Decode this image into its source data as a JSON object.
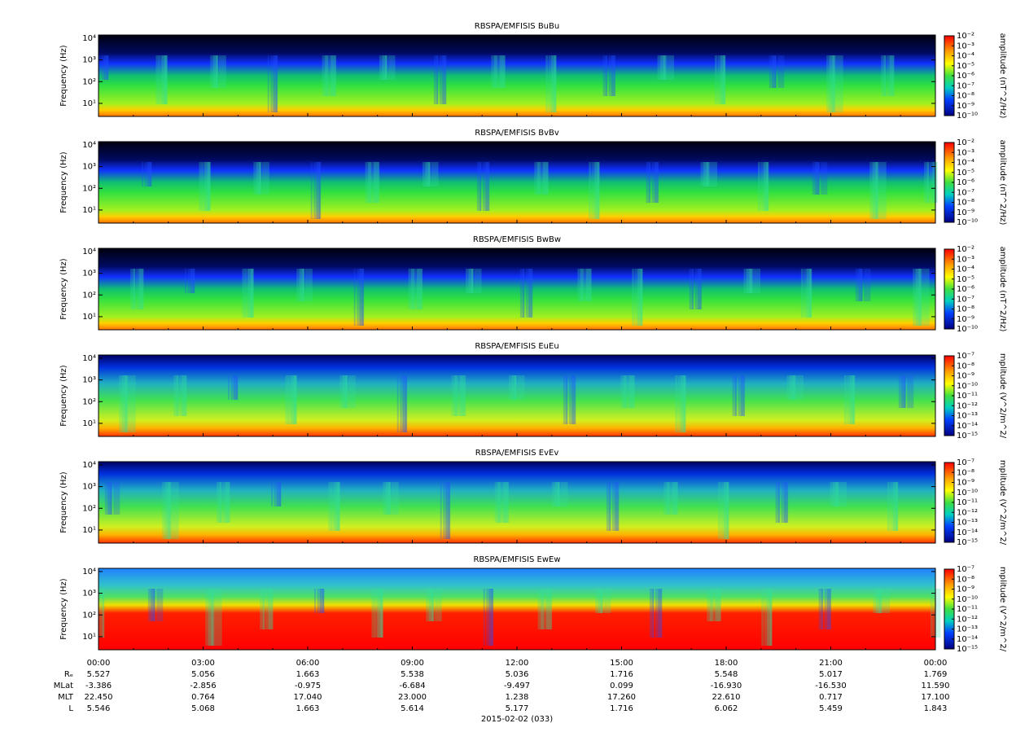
{
  "chart_data": [
    {
      "type": "spectrogram",
      "title": "RBSPA/EMFISIS  BuBu",
      "ylabel": "Frequency (Hz)",
      "ylog": true,
      "ylim": [
        2.5,
        14000
      ],
      "yticks": [
        {
          "value": 10,
          "label": "10¹"
        },
        {
          "value": 100,
          "label": "10²"
        },
        {
          "value": 1000,
          "label": "10³"
        },
        {
          "value": 10000,
          "label": "10⁴"
        }
      ],
      "colorbar_label": "amplitude (nT^2/Hz)",
      "zlog": true,
      "zlim": [
        1e-10,
        0.01
      ],
      "zticks": [
        {
          "value": 0.01,
          "label": "10⁻²"
        },
        {
          "value": 0.001,
          "label": "10⁻³"
        },
        {
          "value": 0.0001,
          "label": "10⁻⁴"
        },
        {
          "value": 1e-05,
          "label": "10⁻⁵"
        },
        {
          "value": 1e-06,
          "label": "10⁻⁶"
        },
        {
          "value": 1e-07,
          "label": "10⁻⁷"
        },
        {
          "value": 1e-08,
          "label": "10⁻⁸"
        },
        {
          "value": 1e-09,
          "label": "10⁻⁹"
        },
        {
          "value": 1e-10,
          "label": "10⁻¹⁰"
        }
      ]
    },
    {
      "type": "spectrogram",
      "title": "RBSPA/EMFISIS  BvBv",
      "ylabel": "Frequency (Hz)",
      "ylog": true,
      "ylim": [
        2.5,
        14000
      ],
      "yticks": [
        {
          "value": 10,
          "label": "10¹"
        },
        {
          "value": 100,
          "label": "10²"
        },
        {
          "value": 1000,
          "label": "10³"
        },
        {
          "value": 10000,
          "label": "10⁴"
        }
      ],
      "colorbar_label": "amplitude (nT^2/Hz)",
      "zlog": true,
      "zlim": [
        1e-10,
        0.01
      ],
      "zticks": [
        {
          "value": 0.01,
          "label": "10⁻²"
        },
        {
          "value": 0.001,
          "label": "10⁻³"
        },
        {
          "value": 0.0001,
          "label": "10⁻⁴"
        },
        {
          "value": 1e-05,
          "label": "10⁻⁵"
        },
        {
          "value": 1e-06,
          "label": "10⁻⁶"
        },
        {
          "value": 1e-07,
          "label": "10⁻⁷"
        },
        {
          "value": 1e-08,
          "label": "10⁻⁸"
        },
        {
          "value": 1e-09,
          "label": "10⁻⁹"
        },
        {
          "value": 1e-10,
          "label": "10⁻¹⁰"
        }
      ]
    },
    {
      "type": "spectrogram",
      "title": "RBSPA/EMFISIS  BwBw",
      "ylabel": "Frequency (Hz)",
      "ylog": true,
      "ylim": [
        2.5,
        14000
      ],
      "yticks": [
        {
          "value": 10,
          "label": "10¹"
        },
        {
          "value": 100,
          "label": "10²"
        },
        {
          "value": 1000,
          "label": "10³"
        },
        {
          "value": 10000,
          "label": "10⁴"
        }
      ],
      "colorbar_label": "amplitude (nT^2/Hz)",
      "zlog": true,
      "zlim": [
        1e-10,
        0.01
      ],
      "zticks": [
        {
          "value": 0.01,
          "label": "10⁻²"
        },
        {
          "value": 0.001,
          "label": "10⁻³"
        },
        {
          "value": 0.0001,
          "label": "10⁻⁴"
        },
        {
          "value": 1e-05,
          "label": "10⁻⁵"
        },
        {
          "value": 1e-06,
          "label": "10⁻⁶"
        },
        {
          "value": 1e-07,
          "label": "10⁻⁷"
        },
        {
          "value": 1e-08,
          "label": "10⁻⁸"
        },
        {
          "value": 1e-09,
          "label": "10⁻⁹"
        },
        {
          "value": 1e-10,
          "label": "10⁻¹⁰"
        }
      ]
    },
    {
      "type": "spectrogram",
      "title": "RBSPA/EMFISIS  EuEu",
      "ylabel": "Frequency (Hz)",
      "ylog": true,
      "ylim": [
        2.5,
        14000
      ],
      "yticks": [
        {
          "value": 10,
          "label": "10¹"
        },
        {
          "value": 100,
          "label": "10²"
        },
        {
          "value": 1000,
          "label": "10³"
        },
        {
          "value": 10000,
          "label": "10⁴"
        }
      ],
      "colorbar_label": "mplitude (V^2/m^2/",
      "zlog": true,
      "zlim": [
        1e-15,
        1e-07
      ],
      "zticks": [
        {
          "value": 1e-07,
          "label": "10⁻⁷"
        },
        {
          "value": 1e-08,
          "label": "10⁻⁸"
        },
        {
          "value": 1e-09,
          "label": "10⁻⁹"
        },
        {
          "value": 1e-10,
          "label": "10⁻¹⁰"
        },
        {
          "value": 1e-11,
          "label": "10⁻¹¹"
        },
        {
          "value": 1e-12,
          "label": "10⁻¹²"
        },
        {
          "value": 1e-13,
          "label": "10⁻¹³"
        },
        {
          "value": 1e-14,
          "label": "10⁻¹⁴"
        },
        {
          "value": 1e-15,
          "label": "10⁻¹⁵"
        }
      ]
    },
    {
      "type": "spectrogram",
      "title": "RBSPA/EMFISIS  EvEv",
      "ylabel": "Frequency (Hz)",
      "ylog": true,
      "ylim": [
        2.5,
        14000
      ],
      "yticks": [
        {
          "value": 10,
          "label": "10¹"
        },
        {
          "value": 100,
          "label": "10²"
        },
        {
          "value": 1000,
          "label": "10³"
        },
        {
          "value": 10000,
          "label": "10⁴"
        }
      ],
      "colorbar_label": "mplitude (V^2/m^2/",
      "zlog": true,
      "zlim": [
        1e-15,
        1e-07
      ],
      "zticks": [
        {
          "value": 1e-07,
          "label": "10⁻⁷"
        },
        {
          "value": 1e-08,
          "label": "10⁻⁸"
        },
        {
          "value": 1e-09,
          "label": "10⁻⁹"
        },
        {
          "value": 1e-10,
          "label": "10⁻¹⁰"
        },
        {
          "value": 1e-11,
          "label": "10⁻¹¹"
        },
        {
          "value": 1e-12,
          "label": "10⁻¹²"
        },
        {
          "value": 1e-13,
          "label": "10⁻¹³"
        },
        {
          "value": 1e-14,
          "label": "10⁻¹⁴"
        },
        {
          "value": 1e-15,
          "label": "10⁻¹⁵"
        }
      ]
    },
    {
      "type": "spectrogram",
      "title": "RBSPA/EMFISIS  EwEw",
      "ylabel": "Frequency (Hz)",
      "ylog": true,
      "ylim": [
        2.5,
        14000
      ],
      "yticks": [
        {
          "value": 10,
          "label": "10¹"
        },
        {
          "value": 100,
          "label": "10²"
        },
        {
          "value": 1000,
          "label": "10³"
        },
        {
          "value": 10000,
          "label": "10⁴"
        }
      ],
      "colorbar_label": "mplitude (V^2/m^2/",
      "zlog": true,
      "zlim": [
        1e-15,
        1e-07
      ],
      "zticks": [
        {
          "value": 1e-07,
          "label": "10⁻⁷"
        },
        {
          "value": 1e-08,
          "label": "10⁻⁸"
        },
        {
          "value": 1e-09,
          "label": "10⁻⁹"
        },
        {
          "value": 1e-10,
          "label": "10⁻¹⁰"
        },
        {
          "value": 1e-11,
          "label": "10⁻¹¹"
        },
        {
          "value": 1e-12,
          "label": "10⁻¹²"
        },
        {
          "value": 1e-13,
          "label": "10⁻¹³"
        },
        {
          "value": 1e-14,
          "label": "10⁻¹⁴"
        },
        {
          "value": 1e-15,
          "label": "10⁻¹⁵"
        }
      ]
    }
  ],
  "x_axis": {
    "xlim": [
      0,
      24
    ],
    "xticks": [
      {
        "value": 0,
        "label": "00:00"
      },
      {
        "value": 3,
        "label": "03:00"
      },
      {
        "value": 6,
        "label": "06:00"
      },
      {
        "value": 9,
        "label": "09:00"
      },
      {
        "value": 12,
        "label": "12:00"
      },
      {
        "value": 15,
        "label": "15:00"
      },
      {
        "value": 18,
        "label": "18:00"
      },
      {
        "value": 21,
        "label": "21:00"
      },
      {
        "value": 24,
        "label": "00:00"
      }
    ],
    "xlabel": "2015-02-02 (033)",
    "ephemeris": [
      {
        "name": "Rₑ",
        "values": [
          "5.527",
          "5.056",
          "1.663",
          "5.538",
          "5.036",
          "1.716",
          "5.548",
          "5.017",
          "1.769"
        ]
      },
      {
        "name": "MLat",
        "values": [
          "-3.386",
          "-2.856",
          "-0.975",
          "-6.684",
          "-9.497",
          "0.099",
          "-16.930",
          "-16.530",
          "11.590"
        ]
      },
      {
        "name": "MLT",
        "values": [
          "22.450",
          "0.764",
          "17.040",
          "23.000",
          "1.238",
          "17.260",
          "22.610",
          "0.717",
          "17.100"
        ]
      },
      {
        "name": "L",
        "values": [
          "5.546",
          "5.068",
          "1.663",
          "5.614",
          "5.177",
          "1.716",
          "6.062",
          "5.459",
          "1.843"
        ]
      }
    ]
  }
}
